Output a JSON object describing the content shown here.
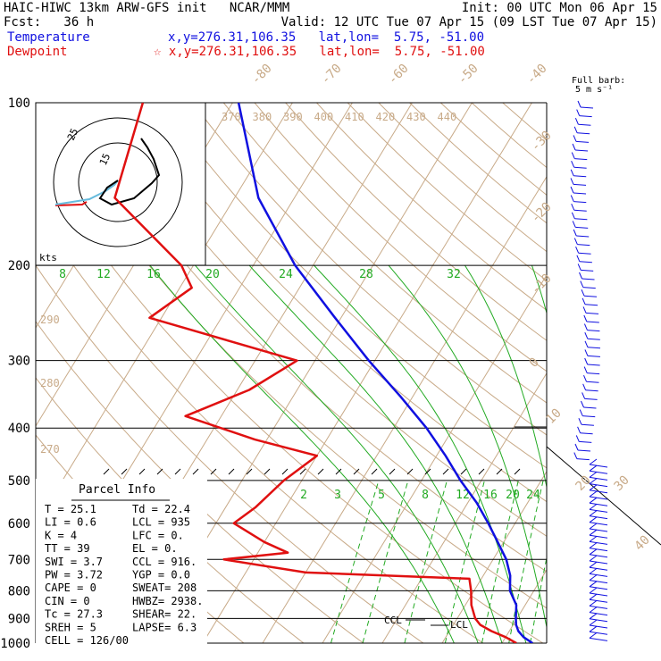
{
  "header": {
    "line1_left": "HAIC-HIWC 13km ARW-GFS init   NCAR/MMM",
    "line1_right": "Init: 00 UTC Mon 06 Apr 15",
    "line2_left": "Fcst:   36 h",
    "line2_right": "Valid: 12 UTC Tue 07 Apr 15 (09 LST Tue 07 Apr 15)",
    "temp_label": "Temperature",
    "temp_coords": "x,y=276.31,106.35   lat,lon=  5.75, -51.00",
    "dew_label": "Dewpoint",
    "dew_coords": "☆ x,y=276.31,106.35   lat,lon=  5.75, -51.00",
    "barb_legend_1": "Full barb:",
    "barb_legend_2": "5 m s⁻¹"
  },
  "colors": {
    "temperature": "#1010e0",
    "dewpoint": "#e01010",
    "mixing_ratio": "#22aa22",
    "adiabat": "#c8aa88",
    "isotherm": "#c8aa88"
  },
  "hodograph": {
    "ring_labels": [
      "25",
      "15"
    ],
    "units_label": "kts"
  },
  "parcel": {
    "title": "Parcel Info",
    "rows": [
      [
        "T   =   25.1",
        "Td =  22.4"
      ],
      [
        "LI  =    0.6",
        "LCL =  935"
      ],
      [
        "K   =      4",
        "LFC =    0."
      ],
      [
        "TT  =     39",
        "EL  =    0."
      ],
      [
        "SWI =    3.7",
        "CCL =  916."
      ],
      [
        "PW  =   3.72",
        "YGP =  0.0"
      ],
      [
        "CAPE =     0",
        "SWEAT= 208"
      ],
      [
        "CIN  =     0",
        "HWBZ= 2938."
      ],
      [
        "Tc  =   27.3",
        "SHEAR=  22."
      ],
      [
        "SREH =     5",
        "LAPSE=  6.3"
      ],
      [
        "CELL = 126/00",
        ""
      ]
    ]
  },
  "chart_data": {
    "type": "line",
    "title": "",
    "xlabel": "",
    "ylabel": "",
    "pressure_levels": [
      100,
      200,
      300,
      400,
      500,
      600,
      700,
      800,
      900,
      1000
    ],
    "isotherm_labels": [
      "-80",
      "-70",
      "-60",
      "-50",
      "-40",
      "-30",
      "-20",
      "-10",
      "0",
      "10",
      "20",
      "30",
      "40"
    ],
    "theta_labels_top": [
      "370",
      "380",
      "390",
      "400",
      "410",
      "420",
      "430",
      "440"
    ],
    "theta_labels_left": [
      "290",
      "280",
      "270"
    ],
    "mixing_ratio_upper": [
      "8",
      "12",
      "16",
      "20",
      "24",
      "28",
      "32"
    ],
    "mixing_ratio_lower": [
      "2",
      "3",
      "5",
      "8",
      "12",
      "16",
      "20",
      "24"
    ],
    "series": [
      {
        "name": "Temperature",
        "points": [
          [
            1000,
            25.1
          ],
          [
            975,
            23.0
          ],
          [
            950,
            21.5
          ],
          [
            925,
            20.5
          ],
          [
            900,
            19.8
          ],
          [
            850,
            18.5
          ],
          [
            800,
            16.0
          ],
          [
            750,
            14.5
          ],
          [
            700,
            12.2
          ],
          [
            650,
            9.0
          ],
          [
            600,
            5.5
          ],
          [
            550,
            1.5
          ],
          [
            500,
            -3.5
          ],
          [
            450,
            -8.5
          ],
          [
            400,
            -14.5
          ],
          [
            350,
            -22.0
          ],
          [
            300,
            -31.0
          ],
          [
            250,
            -41.0
          ],
          [
            200,
            -53.0
          ],
          [
            150,
            -66.0
          ],
          [
            100,
            -79.0
          ]
        ]
      },
      {
        "name": "Dewpoint",
        "points": [
          [
            1000,
            22.4
          ],
          [
            975,
            20.0
          ],
          [
            950,
            17.0
          ],
          [
            925,
            14.5
          ],
          [
            900,
            13.0
          ],
          [
            850,
            11.0
          ],
          [
            800,
            9.5
          ],
          [
            760,
            8.0
          ],
          [
            740,
            -20.0
          ],
          [
            700,
            -35.0
          ],
          [
            680,
            -25.0
          ],
          [
            650,
            -30.0
          ],
          [
            600,
            -37.0
          ],
          [
            560,
            -35.0
          ],
          [
            500,
            -33.0
          ],
          [
            450,
            -30.0
          ],
          [
            420,
            -42.0
          ],
          [
            380,
            -56.0
          ],
          [
            340,
            -48.0
          ],
          [
            300,
            -43.0
          ],
          [
            250,
            -72.0
          ],
          [
            220,
            -68.0
          ],
          [
            200,
            -72.0
          ],
          [
            150,
            -90.0
          ],
          [
            100,
            -95.0
          ]
        ]
      }
    ],
    "annotations": [
      "CCL",
      "LCL"
    ]
  }
}
